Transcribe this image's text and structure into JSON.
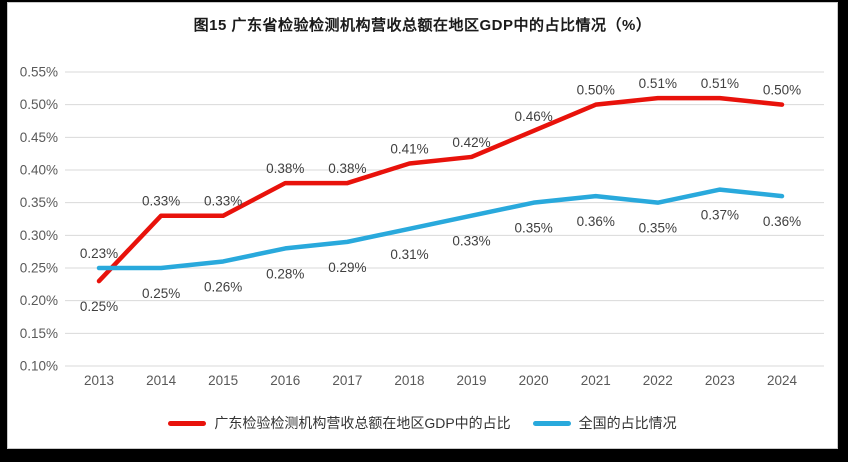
{
  "title": "图15  广东省检验检测机构营收总额在地区GDP中的占比情况（%）",
  "frame": {
    "outer_bg": "#000000",
    "panel_bg": "#ffffff",
    "panel_border": "#c9c9c9"
  },
  "colors": {
    "guangdong_line": "#e8120b",
    "national_line": "#29a9dc",
    "gridline": "#d9d9d9",
    "tick_label": "#595959",
    "data_label": "#404040"
  },
  "chart_data": {
    "type": "line",
    "title": "图15  广东省检验检测机构营收总额在地区GDP中的占比情况（%）",
    "categories": [
      "2013",
      "2014",
      "2015",
      "2016",
      "2017",
      "2018",
      "2019",
      "2020",
      "2021",
      "2022",
      "2023",
      "2024"
    ],
    "series": [
      {
        "name": "广东检验检测机构营收总额在地区GDP中的占比",
        "color": "#e8120b",
        "label_position": "above",
        "values": [
          0.23,
          0.33,
          0.33,
          0.38,
          0.38,
          0.41,
          0.42,
          0.46,
          0.5,
          0.51,
          0.51,
          0.5
        ]
      },
      {
        "name": "全国的占比情况",
        "color": "#29a9dc",
        "label_position": "below",
        "values": [
          0.25,
          0.25,
          0.26,
          0.28,
          0.29,
          0.31,
          0.33,
          0.35,
          0.36,
          0.35,
          0.37,
          0.36
        ]
      }
    ],
    "data_labels": {
      "guangdong": [
        "0.23%",
        "0.33%",
        "0.33%",
        "0.38%",
        "0.38%",
        "0.41%",
        "0.42%",
        "0.46%",
        "0.50%",
        "0.51%",
        "0.51%",
        "0.50%"
      ],
      "national": [
        "0.25%",
        "0.25%",
        "0.26%",
        "0.28%",
        "0.29%",
        "0.31%",
        "0.33%",
        "0.35%",
        "0.36%",
        "0.35%",
        "0.37%",
        "0.36%"
      ]
    },
    "ylim": [
      0.1,
      0.55
    ],
    "ytick_step": 0.05,
    "ytick_labels": [
      "0.55%",
      "0.50%",
      "0.45%",
      "0.40%",
      "0.35%",
      "0.30%",
      "0.25%",
      "0.20%",
      "0.15%",
      "0.10%"
    ],
    "xlabel": "",
    "ylabel": "",
    "grid": "horizontal-only",
    "legend_position": "bottom"
  }
}
